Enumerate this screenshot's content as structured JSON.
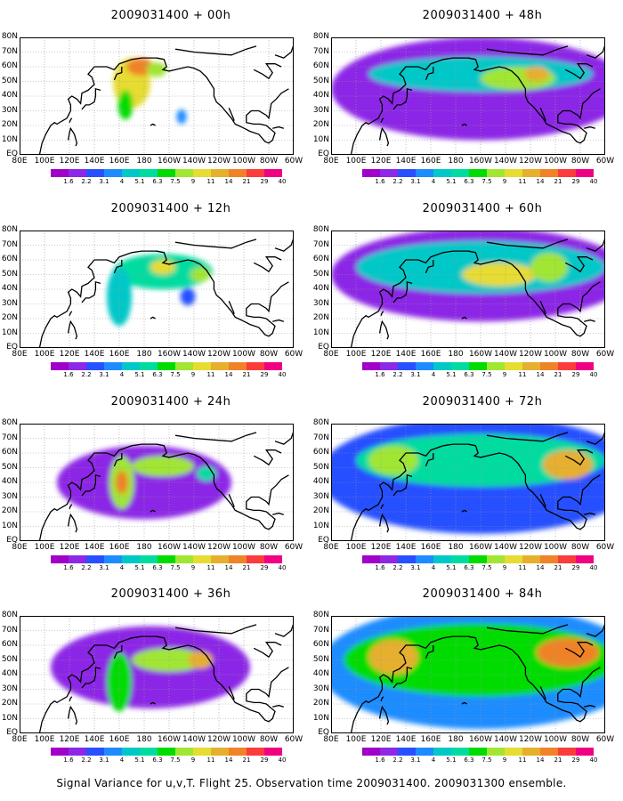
{
  "caption": "Signal Variance for u,v,T. Flight 25. Observation time 2009031400. 2009031300 ensemble.",
  "colors": {
    "levels": [
      "#a000c8",
      "#8c28e6",
      "#2850ff",
      "#1e8cff",
      "#00c8c8",
      "#00dca0",
      "#00dc00",
      "#a0e632",
      "#e6dc32",
      "#e6af2d",
      "#f08228",
      "#fa3c3c",
      "#f00082"
    ],
    "coast": "#000000",
    "grid": "#9a9a9a"
  },
  "chart_data": [
    {
      "type": "heatmap",
      "title": "2009031400 + 00h",
      "ylabels": [
        "80N",
        "70N",
        "60N",
        "50N",
        "40N",
        "30N",
        "20N",
        "10N",
        "EQ"
      ],
      "xlabels": [
        "80E",
        "100E",
        "120E",
        "140E",
        "160E",
        "180",
        "160W",
        "140W",
        "120W",
        "100W",
        "80W",
        "60W"
      ],
      "levels": [
        "1.6",
        "2.2",
        "3.1",
        "4",
        "5.1",
        "6.3",
        "7.5",
        "9",
        "11",
        "14",
        "21",
        "29",
        "40"
      ],
      "blobs": [
        {
          "lon": 170,
          "lat": 49,
          "rx": 15,
          "ry": 17,
          "level": 8
        },
        {
          "lon": 177,
          "lat": 60,
          "rx": 11,
          "ry": 6,
          "level": 10
        },
        {
          "lon": 165,
          "lat": 34,
          "rx": 6,
          "ry": 10,
          "level": 6
        },
        {
          "lon": 190,
          "lat": 58,
          "rx": 8,
          "ry": 5,
          "level": 7
        },
        {
          "lon": 210,
          "lat": 26,
          "rx": 4,
          "ry": 5,
          "level": 3
        }
      ]
    },
    {
      "type": "heatmap",
      "title": "2009031400 + 12h",
      "ylabels": [
        "80N",
        "70N",
        "60N",
        "50N",
        "40N",
        "30N",
        "20N",
        "10N",
        "EQ"
      ],
      "xlabels": [
        "80E",
        "100E",
        "120E",
        "140E",
        "160E",
        "180",
        "160W",
        "140W",
        "120W",
        "100W",
        "80W",
        "60W"
      ],
      "levels": [
        "1.6",
        "2.2",
        "3.1",
        "4",
        "5.1",
        "6.3",
        "7.5",
        "9",
        "11",
        "14",
        "21",
        "29",
        "40"
      ],
      "blobs": [
        {
          "lon": 195,
          "lat": 52,
          "rx": 40,
          "ry": 12,
          "level": 5
        },
        {
          "lon": 160,
          "lat": 35,
          "rx": 10,
          "ry": 20,
          "level": 4
        },
        {
          "lon": 195,
          "lat": 55,
          "rx": 10,
          "ry": 5,
          "level": 8
        },
        {
          "lon": 225,
          "lat": 50,
          "rx": 8,
          "ry": 5,
          "level": 7
        },
        {
          "lon": 215,
          "lat": 35,
          "rx": 6,
          "ry": 6,
          "level": 2
        }
      ]
    },
    {
      "type": "heatmap",
      "title": "2009031400 + 24h",
      "ylabels": [
        "80N",
        "70N",
        "60N",
        "50N",
        "40N",
        "30N",
        "20N",
        "10N",
        "EQ"
      ],
      "xlabels": [
        "80E",
        "100E",
        "120E",
        "140E",
        "160E",
        "180",
        "160W",
        "140W",
        "120W",
        "100W",
        "80W",
        "60W"
      ],
      "levels": [
        "1.6",
        "2.2",
        "3.1",
        "4",
        "5.1",
        "6.3",
        "7.5",
        "9",
        "11",
        "14",
        "21",
        "29",
        "40"
      ],
      "blobs": [
        {
          "lon": 180,
          "lat": 40,
          "rx": 70,
          "ry": 25,
          "level": 1
        },
        {
          "lon": 162,
          "lat": 40,
          "rx": 10,
          "ry": 18,
          "level": 7
        },
        {
          "lon": 195,
          "lat": 51,
          "rx": 25,
          "ry": 7,
          "level": 7
        },
        {
          "lon": 162,
          "lat": 40,
          "rx": 5,
          "ry": 8,
          "level": 10
        },
        {
          "lon": 230,
          "lat": 46,
          "rx": 8,
          "ry": 5,
          "level": 5
        }
      ]
    },
    {
      "type": "heatmap",
      "title": "2009031400 + 36h",
      "ylabels": [
        "80N",
        "70N",
        "60N",
        "50N",
        "40N",
        "30N",
        "20N",
        "10N",
        "EQ"
      ],
      "xlabels": [
        "80E",
        "100E",
        "120E",
        "140E",
        "160E",
        "180",
        "160W",
        "140W",
        "120W",
        "100W",
        "80W",
        "60W"
      ],
      "levels": [
        "1.6",
        "2.2",
        "3.1",
        "4",
        "5.1",
        "6.3",
        "7.5",
        "9",
        "11",
        "14",
        "21",
        "29",
        "40"
      ],
      "blobs": [
        {
          "lon": 185,
          "lat": 45,
          "rx": 80,
          "ry": 28,
          "level": 1
        },
        {
          "lon": 160,
          "lat": 35,
          "rx": 10,
          "ry": 20,
          "level": 6
        },
        {
          "lon": 200,
          "lat": 50,
          "rx": 30,
          "ry": 8,
          "level": 7
        },
        {
          "lon": 225,
          "lat": 50,
          "rx": 10,
          "ry": 6,
          "level": 9
        }
      ]
    },
    {
      "type": "heatmap",
      "title": "2009031400 + 48h",
      "ylabels": [
        "80N",
        "70N",
        "60N",
        "50N",
        "40N",
        "30N",
        "20N",
        "10N",
        "EQ"
      ],
      "xlabels": [
        "80E",
        "100E",
        "120E",
        "140E",
        "160E",
        "180",
        "160W",
        "140W",
        "120W",
        "100W",
        "80W",
        "60W"
      ],
      "levels": [
        "1.6",
        "2.2",
        "3.1",
        "4",
        "5.1",
        "6.3",
        "7.5",
        "9",
        "11",
        "14",
        "21",
        "29",
        "40"
      ],
      "blobs": [
        {
          "lon": 200,
          "lat": 45,
          "rx": 120,
          "ry": 35,
          "level": 1
        },
        {
          "lon": 200,
          "lat": 55,
          "rx": 90,
          "ry": 12,
          "level": 4
        },
        {
          "lon": 230,
          "lat": 52,
          "rx": 30,
          "ry": 8,
          "level": 7
        },
        {
          "lon": 245,
          "lat": 55,
          "rx": 10,
          "ry": 5,
          "level": 9
        }
      ]
    },
    {
      "type": "heatmap",
      "title": "2009031400 + 60h",
      "ylabels": [
        "80N",
        "70N",
        "60N",
        "50N",
        "40N",
        "30N",
        "20N",
        "10N",
        "EQ"
      ],
      "xlabels": [
        "80E",
        "100E",
        "120E",
        "140E",
        "160E",
        "180",
        "160W",
        "140W",
        "120W",
        "100W",
        "80W",
        "60W"
      ],
      "levels": [
        "1.6",
        "2.2",
        "3.1",
        "4",
        "5.1",
        "6.3",
        "7.5",
        "9",
        "11",
        "14",
        "21",
        "29",
        "40"
      ],
      "blobs": [
        {
          "lon": 200,
          "lat": 50,
          "rx": 120,
          "ry": 32,
          "level": 1
        },
        {
          "lon": 200,
          "lat": 55,
          "rx": 100,
          "ry": 18,
          "level": 4
        },
        {
          "lon": 215,
          "lat": 50,
          "rx": 30,
          "ry": 8,
          "level": 8
        },
        {
          "lon": 255,
          "lat": 55,
          "rx": 15,
          "ry": 10,
          "level": 7
        }
      ]
    },
    {
      "type": "heatmap",
      "title": "2009031400 + 72h",
      "ylabels": [
        "80N",
        "70N",
        "60N",
        "50N",
        "40N",
        "30N",
        "20N",
        "10N",
        "EQ"
      ],
      "xlabels": [
        "80E",
        "100E",
        "120E",
        "140E",
        "160E",
        "180",
        "160W",
        "140W",
        "120W",
        "100W",
        "80W",
        "60W"
      ],
      "levels": [
        "1.6",
        "2.2",
        "3.1",
        "4",
        "5.1",
        "6.3",
        "7.5",
        "9",
        "11",
        "14",
        "21",
        "29",
        "40"
      ],
      "blobs": [
        {
          "lon": 200,
          "lat": 45,
          "rx": 130,
          "ry": 40,
          "level": 2
        },
        {
          "lon": 200,
          "lat": 55,
          "rx": 100,
          "ry": 18,
          "level": 5
        },
        {
          "lon": 270,
          "lat": 52,
          "rx": 20,
          "ry": 10,
          "level": 9
        },
        {
          "lon": 130,
          "lat": 55,
          "rx": 20,
          "ry": 10,
          "level": 7
        }
      ]
    },
    {
      "type": "heatmap",
      "title": "2009031400 + 84h",
      "ylabels": [
        "80N",
        "70N",
        "60N",
        "50N",
        "40N",
        "30N",
        "20N",
        "10N",
        "EQ"
      ],
      "xlabels": [
        "80E",
        "100E",
        "120E",
        "140E",
        "160E",
        "180",
        "160W",
        "140W",
        "120W",
        "100W",
        "80W",
        "60W"
      ],
      "levels": [
        "1.6",
        "2.2",
        "3.1",
        "4",
        "5.1",
        "6.3",
        "7.5",
        "9",
        "11",
        "14",
        "21",
        "29",
        "40"
      ],
      "blobs": [
        {
          "lon": 200,
          "lat": 45,
          "rx": 130,
          "ry": 42,
          "level": 3
        },
        {
          "lon": 200,
          "lat": 50,
          "rx": 110,
          "ry": 25,
          "level": 6
        },
        {
          "lon": 130,
          "lat": 52,
          "rx": 20,
          "ry": 12,
          "level": 9
        },
        {
          "lon": 270,
          "lat": 55,
          "rx": 25,
          "ry": 10,
          "level": 10
        }
      ]
    }
  ]
}
